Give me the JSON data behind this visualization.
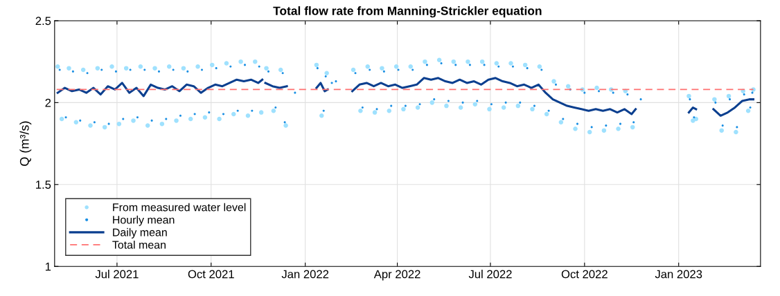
{
  "chart_data": {
    "type": "scatter",
    "title": "Total flow rate from Manning-Strickler equation",
    "ylabel": "Q (m³/s)",
    "xlim": [
      "2021-05-01",
      "2023-03-22"
    ],
    "ylim": [
      1,
      2.5
    ],
    "yticks": [
      1,
      1.5,
      2,
      2.5
    ],
    "xticks": [
      {
        "value": "2021-07-01",
        "label": "Jul 2021"
      },
      {
        "value": "2021-10-01",
        "label": "Oct 2021"
      },
      {
        "value": "2022-01-01",
        "label": "Jan 2022"
      },
      {
        "value": "2022-04-01",
        "label": "Apr 2022"
      },
      {
        "value": "2022-07-01",
        "label": "Jul 2022"
      },
      {
        "value": "2022-10-01",
        "label": "Oct 2022"
      },
      {
        "value": "2023-01-01",
        "label": "Jan 2023"
      }
    ],
    "grid": true,
    "legend": "bottom left",
    "marker": "circle",
    "series": [
      {
        "name": "From measured water level",
        "color": "#9fe1fe",
        "x": [
          "2021-05-04",
          "2021-05-08",
          "2021-05-15",
          "2021-05-22",
          "2021-05-29",
          "2021-06-05",
          "2021-06-12",
          "2021-06-19",
          "2021-06-26",
          "2021-07-03",
          "2021-07-10",
          "2021-07-17",
          "2021-07-24",
          "2021-07-31",
          "2021-08-07",
          "2021-08-14",
          "2021-08-21",
          "2021-08-28",
          "2021-09-04",
          "2021-09-11",
          "2021-09-18",
          "2021-09-25",
          "2021-10-02",
          "2021-10-09",
          "2021-10-16",
          "2021-10-23",
          "2021-10-30",
          "2021-11-06",
          "2021-11-13",
          "2021-11-19",
          "2021-11-24",
          "2021-12-01",
          "2021-12-08",
          "2021-12-13",
          "2022-01-12",
          "2022-01-17",
          "2022-01-22",
          "2022-02-17",
          "2022-02-24",
          "2022-03-03",
          "2022-03-10",
          "2022-03-17",
          "2022-03-24",
          "2022-03-31",
          "2022-04-07",
          "2022-04-14",
          "2022-04-21",
          "2022-04-28",
          "2022-05-05",
          "2022-05-12",
          "2022-05-19",
          "2022-05-26",
          "2022-06-02",
          "2022-06-09",
          "2022-06-16",
          "2022-06-23",
          "2022-06-30",
          "2022-07-07",
          "2022-07-14",
          "2022-07-21",
          "2022-07-28",
          "2022-08-04",
          "2022-08-11",
          "2022-08-18",
          "2022-08-25",
          "2022-09-01",
          "2022-09-08",
          "2022-09-15",
          "2022-09-22",
          "2022-09-29",
          "2022-10-06",
          "2022-10-13",
          "2022-10-20",
          "2022-10-27",
          "2022-11-03",
          "2022-11-10",
          "2022-11-17",
          "2023-01-11",
          "2023-01-15",
          "2023-01-18",
          "2023-02-05",
          "2023-02-12",
          "2023-02-19",
          "2023-02-26",
          "2023-03-05",
          "2023-03-10",
          "2023-03-15"
        ],
        "values": [
          2.22,
          1.9,
          2.21,
          1.88,
          2.2,
          1.86,
          2.21,
          1.85,
          2.22,
          1.87,
          2.21,
          1.89,
          2.22,
          1.86,
          2.21,
          1.87,
          2.22,
          1.89,
          2.21,
          1.9,
          2.22,
          1.91,
          2.23,
          1.9,
          2.24,
          1.93,
          2.25,
          1.92,
          2.25,
          1.94,
          2.21,
          1.95,
          2.2,
          1.86,
          2.23,
          1.92,
          2.18,
          2.2,
          1.95,
          2.22,
          1.94,
          2.21,
          1.95,
          2.22,
          1.96,
          2.22,
          1.97,
          2.25,
          2.0,
          2.26,
          1.98,
          2.25,
          1.97,
          2.25,
          1.99,
          2.25,
          1.96,
          2.24,
          1.97,
          2.24,
          1.98,
          2.23,
          1.96,
          2.22,
          1.93,
          2.13,
          1.88,
          2.1,
          1.84,
          2.08,
          1.82,
          2.09,
          1.83,
          2.08,
          1.84,
          2.07,
          1.85,
          2.04,
          1.89,
          1.9,
          2.02,
          1.83,
          2.04,
          1.82,
          2.07,
          1.95,
          2.08
        ]
      },
      {
        "name": "Hourly mean",
        "color": "#1a8fe3",
        "x": [
          "2021-05-06",
          "2021-05-12",
          "2021-05-19",
          "2021-05-26",
          "2021-06-02",
          "2021-06-09",
          "2021-06-16",
          "2021-06-23",
          "2021-06-30",
          "2021-07-07",
          "2021-07-14",
          "2021-07-21",
          "2021-07-28",
          "2021-08-04",
          "2021-08-11",
          "2021-08-18",
          "2021-08-25",
          "2021-09-01",
          "2021-09-08",
          "2021-09-15",
          "2021-09-22",
          "2021-09-29",
          "2021-10-06",
          "2021-10-13",
          "2021-10-20",
          "2021-10-27",
          "2021-11-03",
          "2021-11-10",
          "2021-11-17",
          "2021-11-26",
          "2021-12-03",
          "2021-12-10",
          "2021-12-12",
          "2021-12-22",
          "2022-01-13",
          "2022-01-19",
          "2022-01-21",
          "2022-01-27",
          "2022-01-31",
          "2022-02-19",
          "2022-02-26",
          "2022-03-05",
          "2022-03-12",
          "2022-03-19",
          "2022-03-26",
          "2022-04-02",
          "2022-04-09",
          "2022-04-16",
          "2022-04-23",
          "2022-04-30",
          "2022-05-07",
          "2022-05-14",
          "2022-05-21",
          "2022-05-28",
          "2022-06-04",
          "2022-06-11",
          "2022-06-18",
          "2022-06-25",
          "2022-07-02",
          "2022-07-09",
          "2022-07-16",
          "2022-07-23",
          "2022-07-30",
          "2022-08-06",
          "2022-08-13",
          "2022-08-20",
          "2022-08-27",
          "2022-09-03",
          "2022-09-10",
          "2022-09-17",
          "2022-09-24",
          "2022-10-01",
          "2022-10-08",
          "2022-10-15",
          "2022-10-22",
          "2022-10-29",
          "2022-11-05",
          "2022-11-12",
          "2022-11-18",
          "2022-11-25",
          "2023-01-12",
          "2023-01-16",
          "2023-02-06",
          "2023-02-13",
          "2023-02-20",
          "2023-02-27",
          "2023-03-06",
          "2023-03-12",
          "2023-03-14"
        ],
        "values": [
          2.2,
          1.91,
          2.19,
          1.89,
          2.18,
          1.88,
          2.2,
          1.87,
          2.19,
          1.9,
          2.2,
          1.91,
          2.2,
          1.89,
          2.19,
          1.9,
          2.2,
          1.92,
          2.19,
          1.93,
          2.2,
          1.94,
          2.21,
          1.93,
          2.22,
          1.95,
          2.23,
          1.95,
          2.22,
          2.19,
          1.97,
          2.18,
          1.88,
          2.06,
          2.21,
          1.95,
          2.16,
          2.12,
          2.13,
          2.18,
          1.97,
          2.2,
          1.96,
          2.19,
          1.98,
          2.2,
          1.98,
          2.2,
          1.99,
          2.23,
          2.02,
          2.24,
          2.01,
          2.23,
          2.0,
          2.23,
          2.01,
          2.23,
          1.99,
          2.22,
          2.0,
          2.22,
          2.0,
          2.21,
          1.98,
          2.2,
          1.95,
          2.11,
          1.9,
          2.08,
          1.87,
          2.06,
          1.85,
          2.07,
          1.86,
          2.06,
          1.87,
          2.05,
          1.88,
          2.02,
          2.02,
          1.91,
          2.0,
          1.86,
          2.02,
          1.85,
          2.05,
          1.97,
          2.06
        ]
      },
      {
        "name": "Daily mean",
        "type": "line",
        "color": "#0b3f8f",
        "marker": "none",
        "line_style": "solid",
        "x": [
          "2021-05-04",
          "2021-05-11",
          "2021-05-18",
          "2021-05-25",
          "2021-06-01",
          "2021-06-08",
          "2021-06-15",
          "2021-06-22",
          "2021-06-29",
          "2021-07-06",
          "2021-07-13",
          "2021-07-20",
          "2021-07-27",
          "2021-08-03",
          "2021-08-10",
          "2021-08-17",
          "2021-08-24",
          "2021-08-31",
          "2021-09-07",
          "2021-09-14",
          "2021-09-21",
          "2021-09-28",
          "2021-10-05",
          "2021-10-12",
          "2021-10-19",
          "2021-10-26",
          "2021-11-02",
          "2021-11-09",
          "2021-11-16",
          "2021-11-20",
          "2021-11-21",
          "2021-11-23",
          "2021-11-30",
          "2021-12-07",
          "2021-12-14",
          "2021-12-15",
          "2022-01-12",
          "2022-01-16",
          "2022-01-20",
          "2022-01-23",
          "2022-01-24",
          "2022-02-16",
          "2022-02-23",
          "2022-03-02",
          "2022-03-09",
          "2022-03-16",
          "2022-03-23",
          "2022-03-30",
          "2022-04-06",
          "2022-04-13",
          "2022-04-20",
          "2022-04-27",
          "2022-05-04",
          "2022-05-11",
          "2022-05-18",
          "2022-05-25",
          "2022-06-01",
          "2022-06-08",
          "2022-06-15",
          "2022-06-22",
          "2022-06-29",
          "2022-07-06",
          "2022-07-13",
          "2022-07-20",
          "2022-07-27",
          "2022-08-03",
          "2022-08-10",
          "2022-08-17",
          "2022-08-24",
          "2022-08-31",
          "2022-09-07",
          "2022-09-14",
          "2022-09-21",
          "2022-09-28",
          "2022-10-05",
          "2022-10-12",
          "2022-10-19",
          "2022-10-26",
          "2022-11-02",
          "2022-11-09",
          "2022-11-16",
          "2022-11-20",
          "2022-11-21",
          "2023-01-11",
          "2023-01-15",
          "2023-01-18",
          "2023-01-19",
          "2023-02-04",
          "2023-02-11",
          "2023-02-18",
          "2023-02-25",
          "2023-03-04",
          "2023-03-11",
          "2023-03-15"
        ],
        "values": [
          2.06,
          2.09,
          2.07,
          2.08,
          2.06,
          2.09,
          2.05,
          2.1,
          2.08,
          2.12,
          2.06,
          2.09,
          2.04,
          2.11,
          2.09,
          2.08,
          2.1,
          2.07,
          2.11,
          2.1,
          2.06,
          2.09,
          2.11,
          2.1,
          2.12,
          2.14,
          2.13,
          2.14,
          2.12,
          2.14,
          null,
          2.12,
          2.1,
          2.09,
          2.1,
          null,
          2.09,
          2.12,
          2.07,
          2.08,
          null,
          2.07,
          2.11,
          2.12,
          2.1,
          2.12,
          2.1,
          2.11,
          2.09,
          2.1,
          2.11,
          2.15,
          2.14,
          2.15,
          2.13,
          2.12,
          2.14,
          2.12,
          2.13,
          2.11,
          2.14,
          2.15,
          2.13,
          2.12,
          2.1,
          2.11,
          2.09,
          2.11,
          2.06,
          2.02,
          2.0,
          1.98,
          1.97,
          1.96,
          1.95,
          1.96,
          1.95,
          1.96,
          1.94,
          1.96,
          1.93,
          1.96,
          null,
          1.94,
          1.97,
          1.96,
          null,
          1.96,
          1.92,
          1.94,
          1.97,
          2.01,
          2.02,
          2.02
        ]
      },
      {
        "name": "Total mean",
        "type": "line",
        "color": "#ff7070",
        "marker": "none",
        "line_style": "dashed",
        "x": [
          "2021-05-03",
          "2023-03-15"
        ],
        "values": [
          2.08,
          2.08
        ]
      }
    ]
  }
}
